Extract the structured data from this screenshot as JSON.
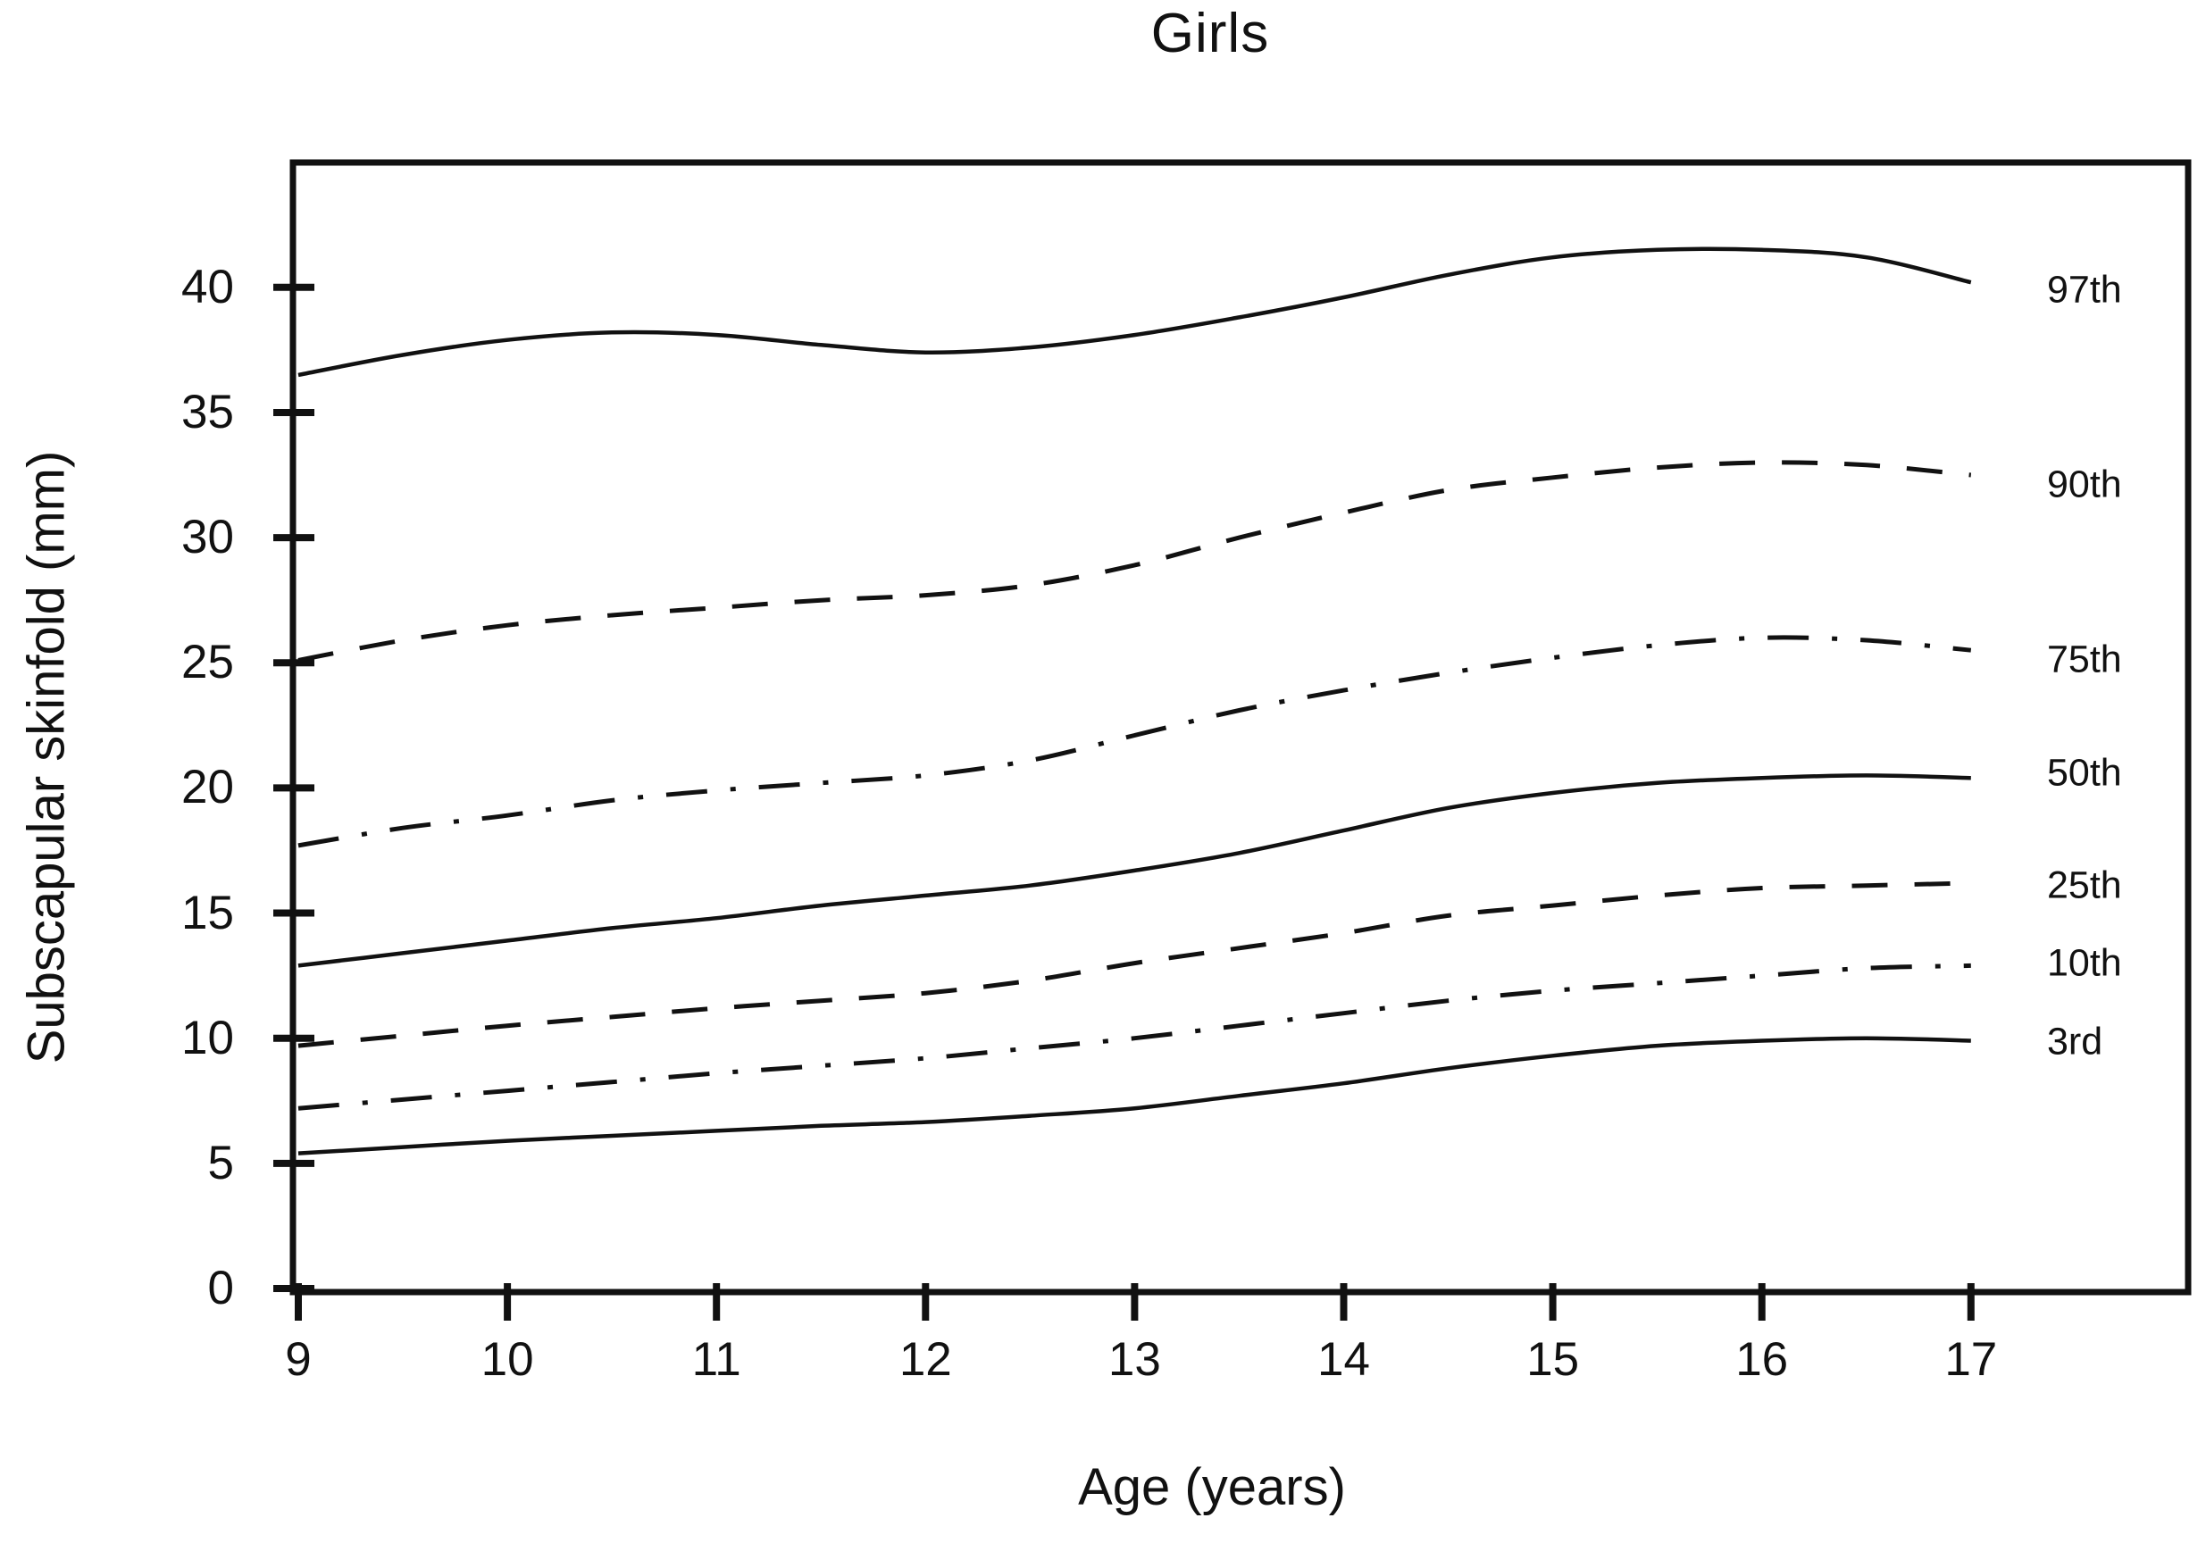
{
  "page": {
    "background": "#ffffff",
    "ink": "#111111"
  },
  "chart_data": {
    "type": "line",
    "title": "Girls",
    "xlabel": "Age (years)",
    "ylabel": "Subscapular skinfold (mm)",
    "grid": false,
    "legend_position": "right-inside-labels",
    "xlim": [
      9,
      18.05
    ],
    "ylim": [
      0,
      45
    ],
    "x_ticks": [
      9,
      10,
      11,
      12,
      13,
      14,
      15,
      16,
      17
    ],
    "y_ticks": [
      0,
      5,
      10,
      15,
      20,
      25,
      30,
      35,
      40
    ],
    "x": [
      9,
      9.5,
      10,
      10.5,
      11,
      11.5,
      12,
      12.5,
      13,
      13.5,
      14,
      14.5,
      15,
      15.5,
      16,
      16.5,
      17
    ],
    "series": [
      {
        "name": "97th",
        "style": "solid",
        "label_value": 39.9,
        "values": [
          36.5,
          37.3,
          37.9,
          38.2,
          38.1,
          37.7,
          37.4,
          37.6,
          38.1,
          38.8,
          39.6,
          40.5,
          41.2,
          41.5,
          41.5,
          41.2,
          40.2
        ]
      },
      {
        "name": "90th",
        "style": "dashed",
        "label_value": 32.1,
        "values": [
          25.1,
          25.9,
          26.5,
          26.9,
          27.2,
          27.5,
          27.7,
          28.1,
          28.9,
          30.0,
          31.0,
          31.9,
          32.4,
          32.8,
          33.0,
          32.9,
          32.5
        ]
      },
      {
        "name": "75th",
        "style": "dashdot",
        "label_value": 25.1,
        "values": [
          17.7,
          18.4,
          18.9,
          19.5,
          19.9,
          20.2,
          20.5,
          21.1,
          22.1,
          23.1,
          23.9,
          24.6,
          25.2,
          25.7,
          26.0,
          25.9,
          25.5
        ]
      },
      {
        "name": "50th",
        "style": "solid",
        "label_value": 20.6,
        "values": [
          12.9,
          13.4,
          13.9,
          14.4,
          14.8,
          15.3,
          15.7,
          16.1,
          16.7,
          17.4,
          18.3,
          19.2,
          19.8,
          20.2,
          20.4,
          20.5,
          20.4
        ]
      },
      {
        "name": "25th",
        "style": "dashed",
        "label_value": 16.1,
        "values": [
          9.7,
          10.1,
          10.5,
          10.85,
          11.2,
          11.5,
          11.8,
          12.3,
          13.0,
          13.6,
          14.2,
          14.9,
          15.3,
          15.7,
          16.0,
          16.1,
          16.2
        ]
      },
      {
        "name": "10th",
        "style": "dashdot",
        "label_value": 13.0,
        "values": [
          7.2,
          7.55,
          7.9,
          8.25,
          8.6,
          8.9,
          9.2,
          9.6,
          10.0,
          10.5,
          11.0,
          11.5,
          11.9,
          12.2,
          12.5,
          12.8,
          12.9
        ]
      },
      {
        "name": "3rd",
        "style": "solid",
        "label_value": 9.85,
        "values": [
          5.4,
          5.65,
          5.9,
          6.1,
          6.3,
          6.5,
          6.65,
          6.9,
          7.2,
          7.7,
          8.2,
          8.8,
          9.3,
          9.7,
          9.9,
          10.0,
          9.9
        ]
      }
    ]
  }
}
